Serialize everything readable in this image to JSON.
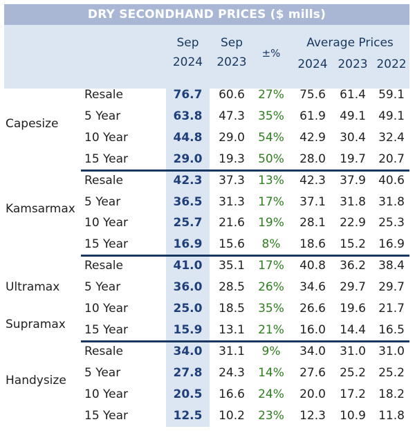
{
  "title": "DRY SECONDHAND PRICES ($ mills)",
  "headers": {
    "sep2024_top": "Sep",
    "sep2024_bottom": "2024",
    "sep2023_top": "Sep",
    "sep2023_bottom": "2023",
    "change": "±%",
    "avg_title": "Average Prices",
    "avg_2024": "2024",
    "avg_2023": "2023",
    "avg_2022": "2022"
  },
  "groups": [
    {
      "names": [
        "Capesize"
      ],
      "rows": [
        [
          "Resale",
          "76.7",
          "60.6",
          "27%",
          "75.6",
          "61.4",
          "59.1"
        ],
        [
          "5 Year",
          "63.8",
          "47.3",
          "35%",
          "61.9",
          "49.1",
          "49.1"
        ],
        [
          "10 Year",
          "44.8",
          "29.0",
          "54%",
          "42.9",
          "30.4",
          "32.4"
        ],
        [
          "15 Year",
          "29.0",
          "19.3",
          "50%",
          "28.0",
          "19.7",
          "20.7"
        ]
      ]
    },
    {
      "names": [
        "Kamsarmax"
      ],
      "rows": [
        [
          "Resale",
          "42.3",
          "37.3",
          "13%",
          "42.3",
          "37.9",
          "40.6"
        ],
        [
          "5 Year",
          "36.5",
          "31.3",
          "17%",
          "37.1",
          "31.8",
          "31.8"
        ],
        [
          "10 Year",
          "25.7",
          "21.6",
          "19%",
          "28.1",
          "22.9",
          "25.3"
        ],
        [
          "15 Year",
          "16.9",
          "15.6",
          "8%",
          "18.6",
          "15.2",
          "16.9"
        ]
      ]
    },
    {
      "names": [
        "Ultramax",
        "Supramax"
      ],
      "rows": [
        [
          "Resale",
          "41.0",
          "35.1",
          "17%",
          "40.8",
          "36.2",
          "38.4"
        ],
        [
          "5 Year",
          "36.0",
          "28.5",
          "26%",
          "34.6",
          "29.7",
          "29.7"
        ],
        [
          "10 Year",
          "25.0",
          "18.5",
          "35%",
          "26.6",
          "19.6",
          "21.7"
        ],
        [
          "15 Year",
          "15.9",
          "13.1",
          "21%",
          "16.0",
          "14.4",
          "16.5"
        ]
      ]
    },
    {
      "names": [
        "Handysize"
      ],
      "rows": [
        [
          "Resale",
          "34.0",
          "31.1",
          "9%",
          "34.0",
          "31.0",
          "31.0"
        ],
        [
          "5 Year",
          "27.8",
          "24.3",
          "14%",
          "27.6",
          "25.2",
          "25.2"
        ],
        [
          "10 Year",
          "20.5",
          "16.6",
          "24%",
          "20.0",
          "17.2",
          "18.2"
        ],
        [
          "15 Year",
          "12.5",
          "10.2",
          "23%",
          "12.3",
          "10.9",
          "11.8"
        ]
      ]
    }
  ]
}
